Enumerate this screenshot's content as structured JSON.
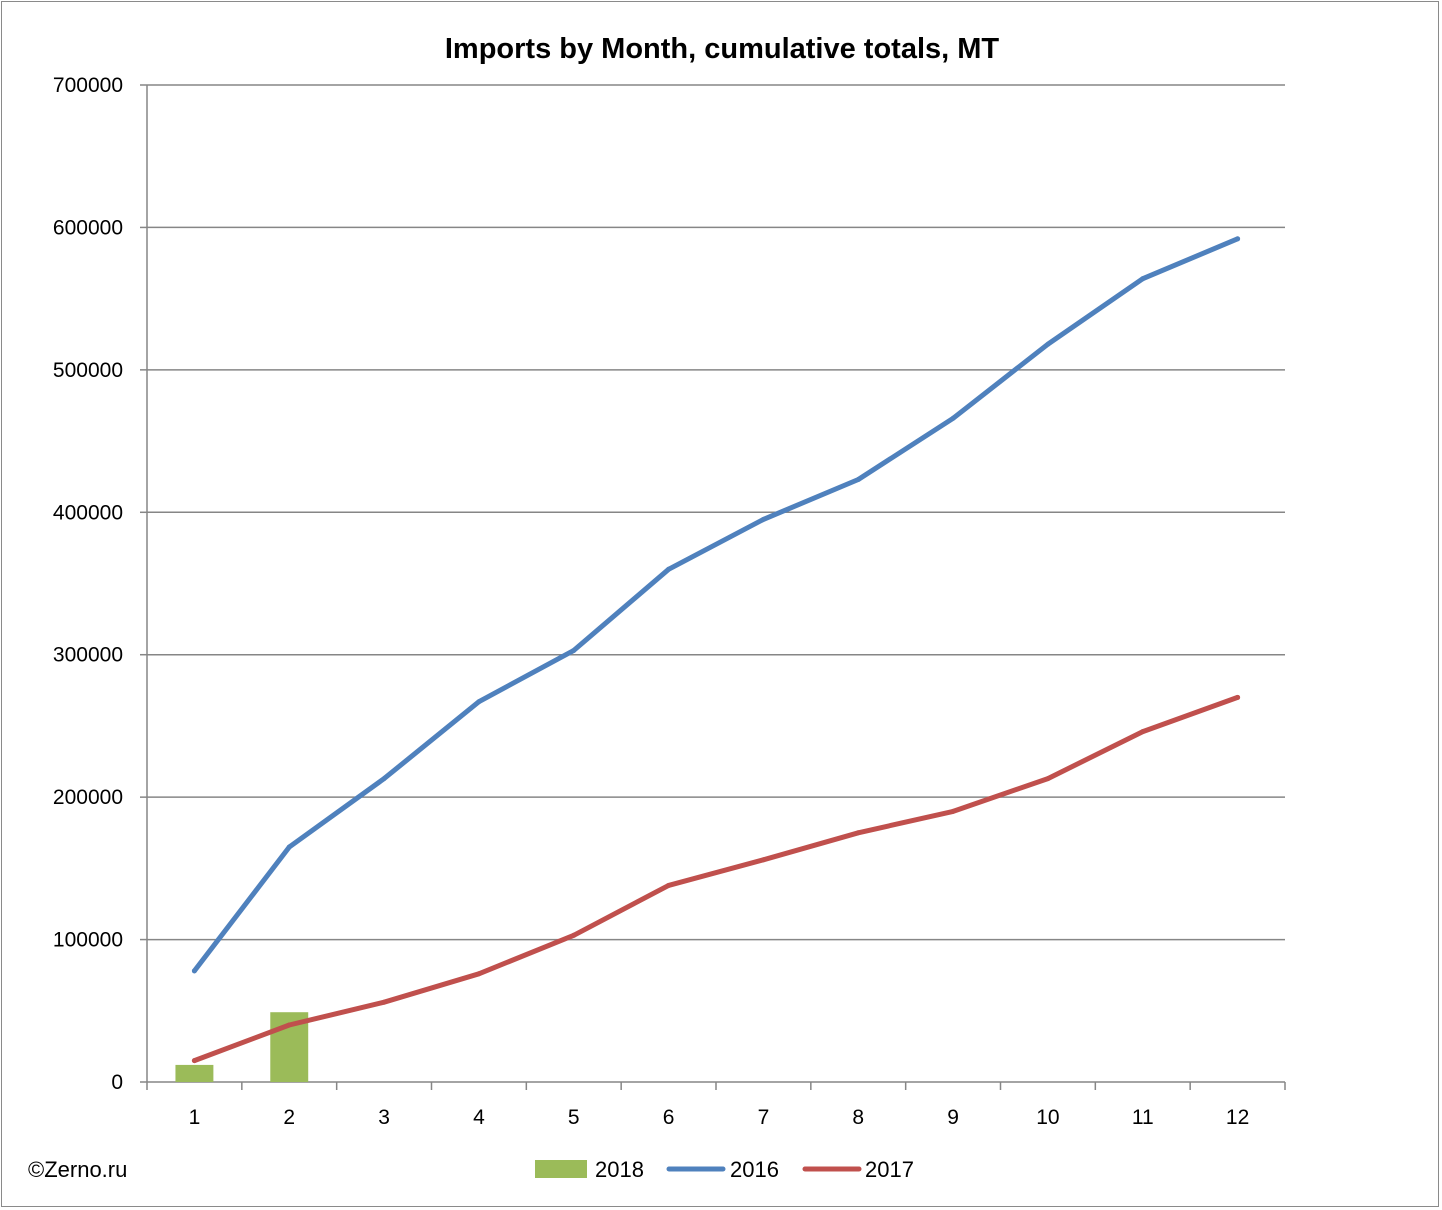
{
  "chart_data": {
    "type": "bar",
    "title": "Imports by Month, cumulative totals, MT",
    "categories": [
      "1",
      "2",
      "3",
      "4",
      "5",
      "6",
      "7",
      "8",
      "9",
      "10",
      "11",
      "12"
    ],
    "ylim": [
      0,
      700000
    ],
    "yticks": [
      0,
      100000,
      200000,
      300000,
      400000,
      500000,
      600000,
      700000
    ],
    "ytick_labels": [
      "0",
      "100000",
      "200000",
      "300000",
      "400000",
      "500000",
      "600000",
      "700000"
    ],
    "grid": true,
    "legend_position": "bottom",
    "series": [
      {
        "name": "2018",
        "type": "bar",
        "color": "#9BBB59",
        "values": [
          12000,
          49000,
          null,
          null,
          null,
          null,
          null,
          null,
          null,
          null,
          null,
          null
        ]
      },
      {
        "name": "2016",
        "type": "line",
        "color": "#4F81BD",
        "values": [
          78000,
          165000,
          213000,
          267000,
          303000,
          360000,
          395000,
          423000,
          466000,
          518000,
          564000,
          592000
        ]
      },
      {
        "name": "2017",
        "type": "line",
        "color": "#C0504D",
        "values": [
          15000,
          40000,
          56000,
          76000,
          103000,
          138000,
          156000,
          175000,
          190000,
          213000,
          246000,
          270000
        ]
      }
    ]
  },
  "watermark": "©Zerno.ru"
}
